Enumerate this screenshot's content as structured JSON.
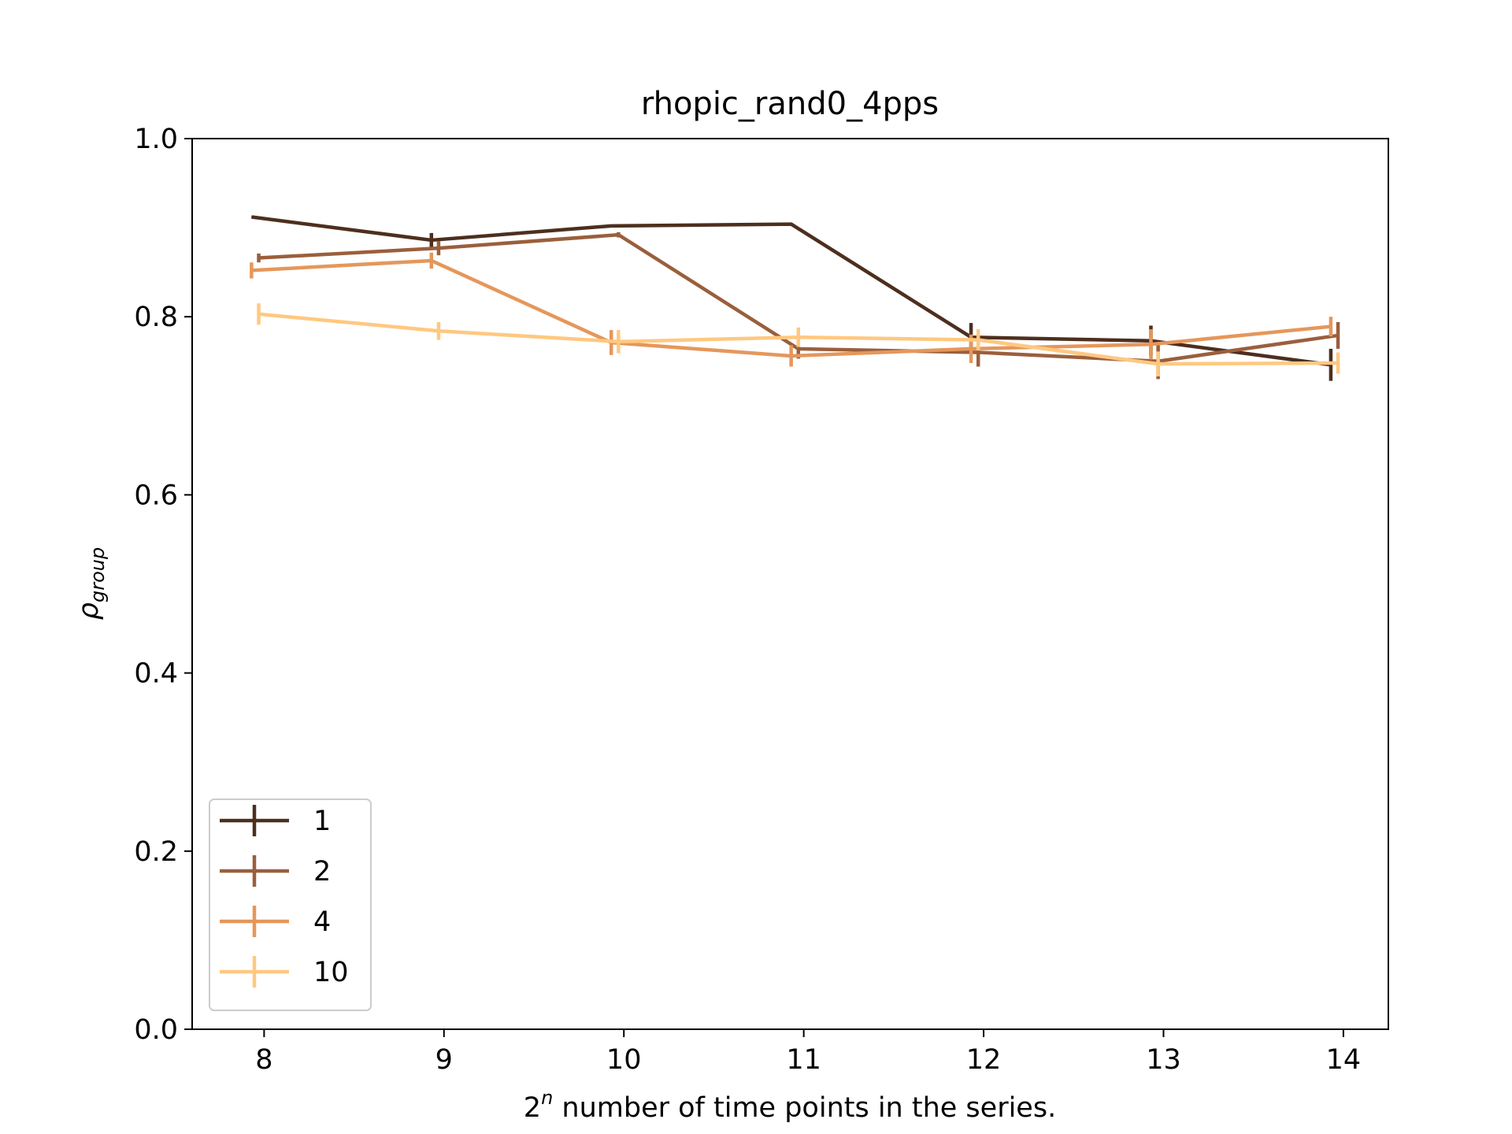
{
  "chart_data": {
    "type": "line",
    "title": "rhopic_rand0_4pps",
    "xlabel": {
      "base": "2",
      "superscript": "n",
      "rest": " number of time points in the series."
    },
    "ylabel": {
      "base": "ρ",
      "subscript": "group"
    },
    "xlim": [
      7.6,
      14.25
    ],
    "ylim": [
      0.0,
      1.0
    ],
    "x_ticks": [
      8,
      9,
      10,
      11,
      12,
      13,
      14
    ],
    "y_ticks": [
      0.0,
      0.2,
      0.4,
      0.6,
      0.8,
      1.0
    ],
    "y_tick_labels": [
      "0.0",
      "0.2",
      "0.4",
      "0.6",
      "0.8",
      "1.0"
    ],
    "grid": false,
    "legend_position": "lower-left",
    "series": [
      {
        "name": "1",
        "color": "#4d2f1e",
        "x": [
          7.93,
          8.93,
          9.93,
          10.93,
          11.93,
          12.93,
          13.93
        ],
        "y": [
          0.912,
          0.886,
          0.902,
          0.904,
          0.777,
          0.773,
          0.746
        ],
        "err": [
          0.0,
          0.008,
          0.0,
          0.0,
          0.016,
          0.017,
          0.018
        ]
      },
      {
        "name": "2",
        "color": "#9a5f3c",
        "x": [
          7.97,
          8.97,
          9.97,
          10.97,
          11.97,
          12.97,
          13.97
        ],
        "y": [
          0.866,
          0.877,
          0.892,
          0.764,
          0.76,
          0.75,
          0.779
        ],
        "err": [
          0.005,
          0.008,
          0.003,
          0.011,
          0.016,
          0.02,
          0.015
        ]
      },
      {
        "name": "4",
        "color": "#e5975b",
        "x": [
          7.93,
          8.93,
          9.93,
          10.93,
          11.93,
          12.93,
          13.93
        ],
        "y": [
          0.852,
          0.863,
          0.771,
          0.756,
          0.764,
          0.769,
          0.789
        ],
        "err": [
          0.009,
          0.009,
          0.014,
          0.012,
          0.016,
          0.017,
          0.011
        ]
      },
      {
        "name": "10",
        "color": "#ffc880",
        "x": [
          7.97,
          8.97,
          9.97,
          10.97,
          11.97,
          12.97,
          13.97
        ],
        "y": [
          0.803,
          0.784,
          0.772,
          0.777,
          0.774,
          0.747,
          0.748
        ],
        "err": [
          0.012,
          0.01,
          0.013,
          0.011,
          0.012,
          0.014,
          0.012
        ]
      }
    ]
  }
}
